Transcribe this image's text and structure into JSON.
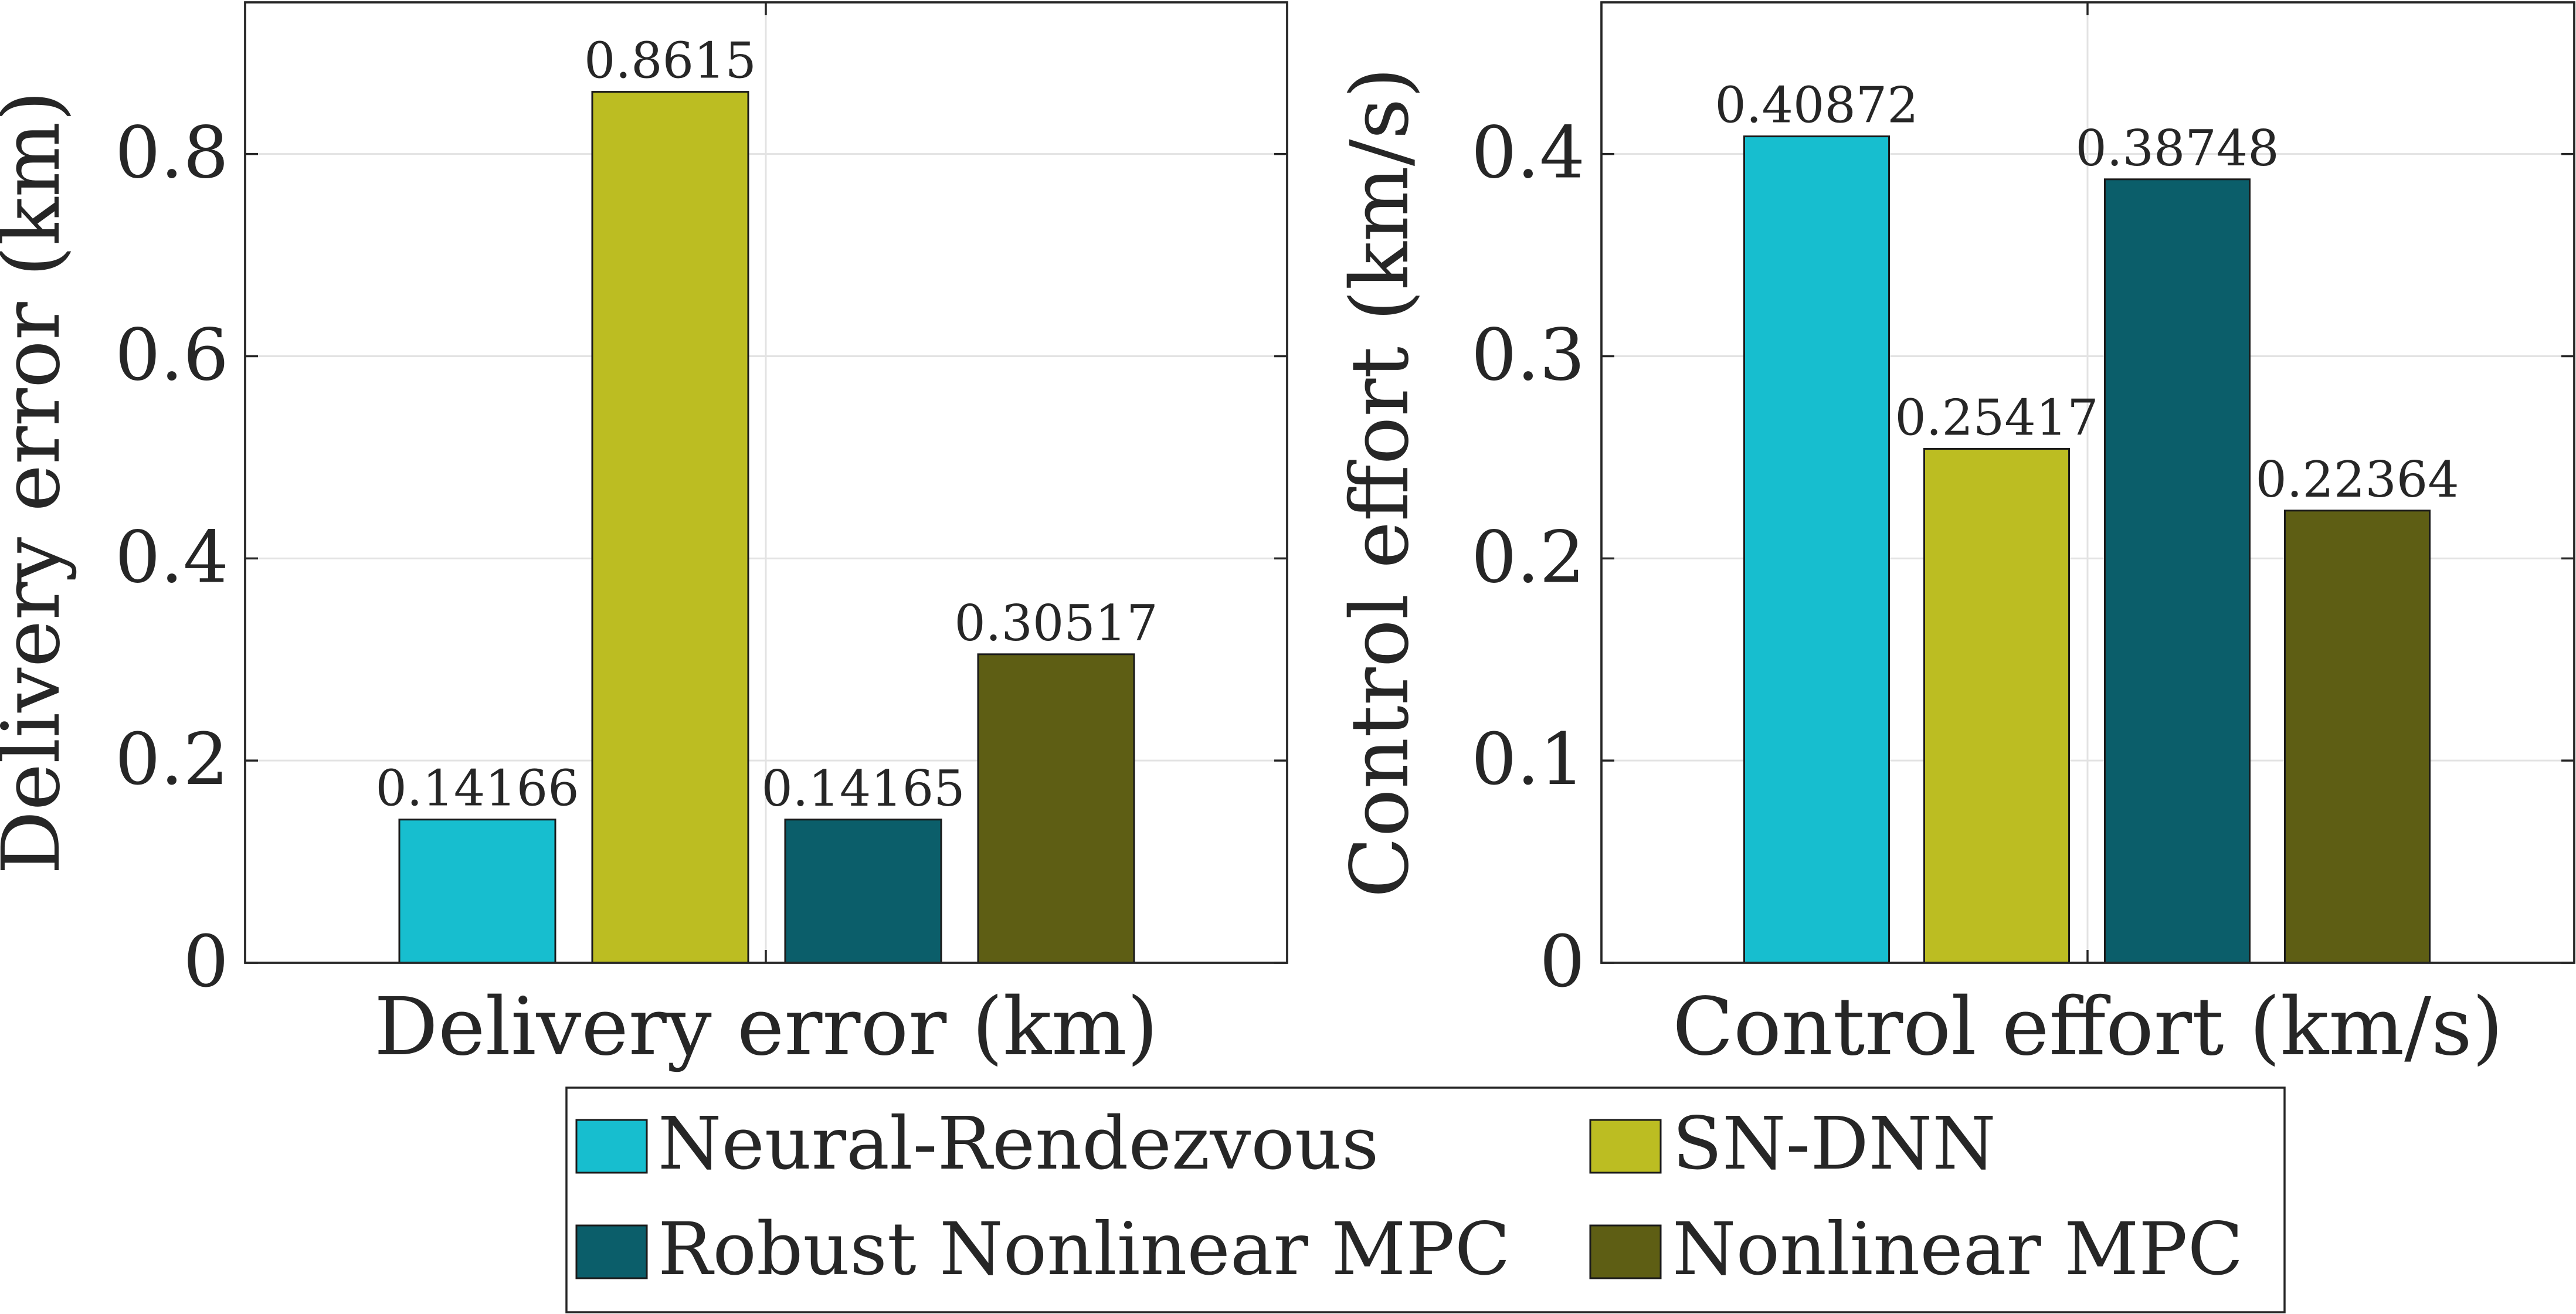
{
  "colors": {
    "neural_rendezvous": "#17becf",
    "sn_dnn": "#bcbd22",
    "robust_nonlinear_mpc": "#0b5e6a",
    "nonlinear_mpc": "#5e5e14"
  },
  "legend": {
    "items": [
      {
        "label": "Neural-Rendezvous",
        "color": "#17becf"
      },
      {
        "label": "SN-DNN",
        "color": "#bcbd22"
      },
      {
        "label": "Robust Nonlinear MPC",
        "color": "#0b5e6a"
      },
      {
        "label": "Nonlinear MPC",
        "color": "#5e5e14"
      }
    ],
    "placement": "bottom",
    "columns": 2
  },
  "chart_data": [
    {
      "type": "bar",
      "categories": [
        "Delivery error (km)"
      ],
      "xlabel": "Delivery error (km)",
      "ylabel": "Delivery error (km)",
      "ylim": [
        0,
        0.95
      ],
      "yticks": [
        0,
        0.2,
        0.4,
        0.6,
        0.8
      ],
      "ytick_labels": [
        "0",
        "0.2",
        "0.4",
        "0.6",
        "0.8"
      ],
      "grid": true,
      "series": [
        {
          "name": "Neural-Rendezvous",
          "values": [
            0.14166
          ],
          "label": "0.14166"
        },
        {
          "name": "SN-DNN",
          "values": [
            0.8615
          ],
          "label": "0.8615"
        },
        {
          "name": "Robust Nonlinear MPC",
          "values": [
            0.14165
          ],
          "label": "0.14165"
        },
        {
          "name": "Nonlinear MPC",
          "values": [
            0.30517
          ],
          "label": "0.30517"
        }
      ]
    },
    {
      "type": "bar",
      "categories": [
        "Control effort (km/s)"
      ],
      "xlabel": "Control effort (km/s)",
      "ylabel": "Control effort (km/s)",
      "ylim": [
        0,
        0.475
      ],
      "yticks": [
        0,
        0.1,
        0.2,
        0.3,
        0.4
      ],
      "ytick_labels": [
        "0",
        "0.1",
        "0.2",
        "0.3",
        "0.4"
      ],
      "grid": true,
      "series": [
        {
          "name": "Neural-Rendezvous",
          "values": [
            0.40872
          ],
          "label": "0.40872"
        },
        {
          "name": "SN-DNN",
          "values": [
            0.25417
          ],
          "label": "0.25417"
        },
        {
          "name": "Robust Nonlinear MPC",
          "values": [
            0.38748
          ],
          "label": "0.38748"
        },
        {
          "name": "Nonlinear MPC",
          "values": [
            0.22364
          ],
          "label": "0.22364"
        }
      ]
    }
  ]
}
